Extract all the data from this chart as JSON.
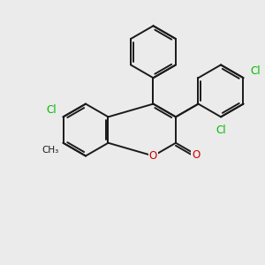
{
  "bg_color": "#ebebeb",
  "bond_color": "#1a1a1a",
  "cl_color": "#00bb00",
  "o_color": "#cc0000",
  "lw": 1.4,
  "figsize": [
    3.0,
    3.0
  ],
  "dpi": 100,
  "xlim": [
    0,
    10
  ],
  "ylim": [
    0,
    10
  ]
}
